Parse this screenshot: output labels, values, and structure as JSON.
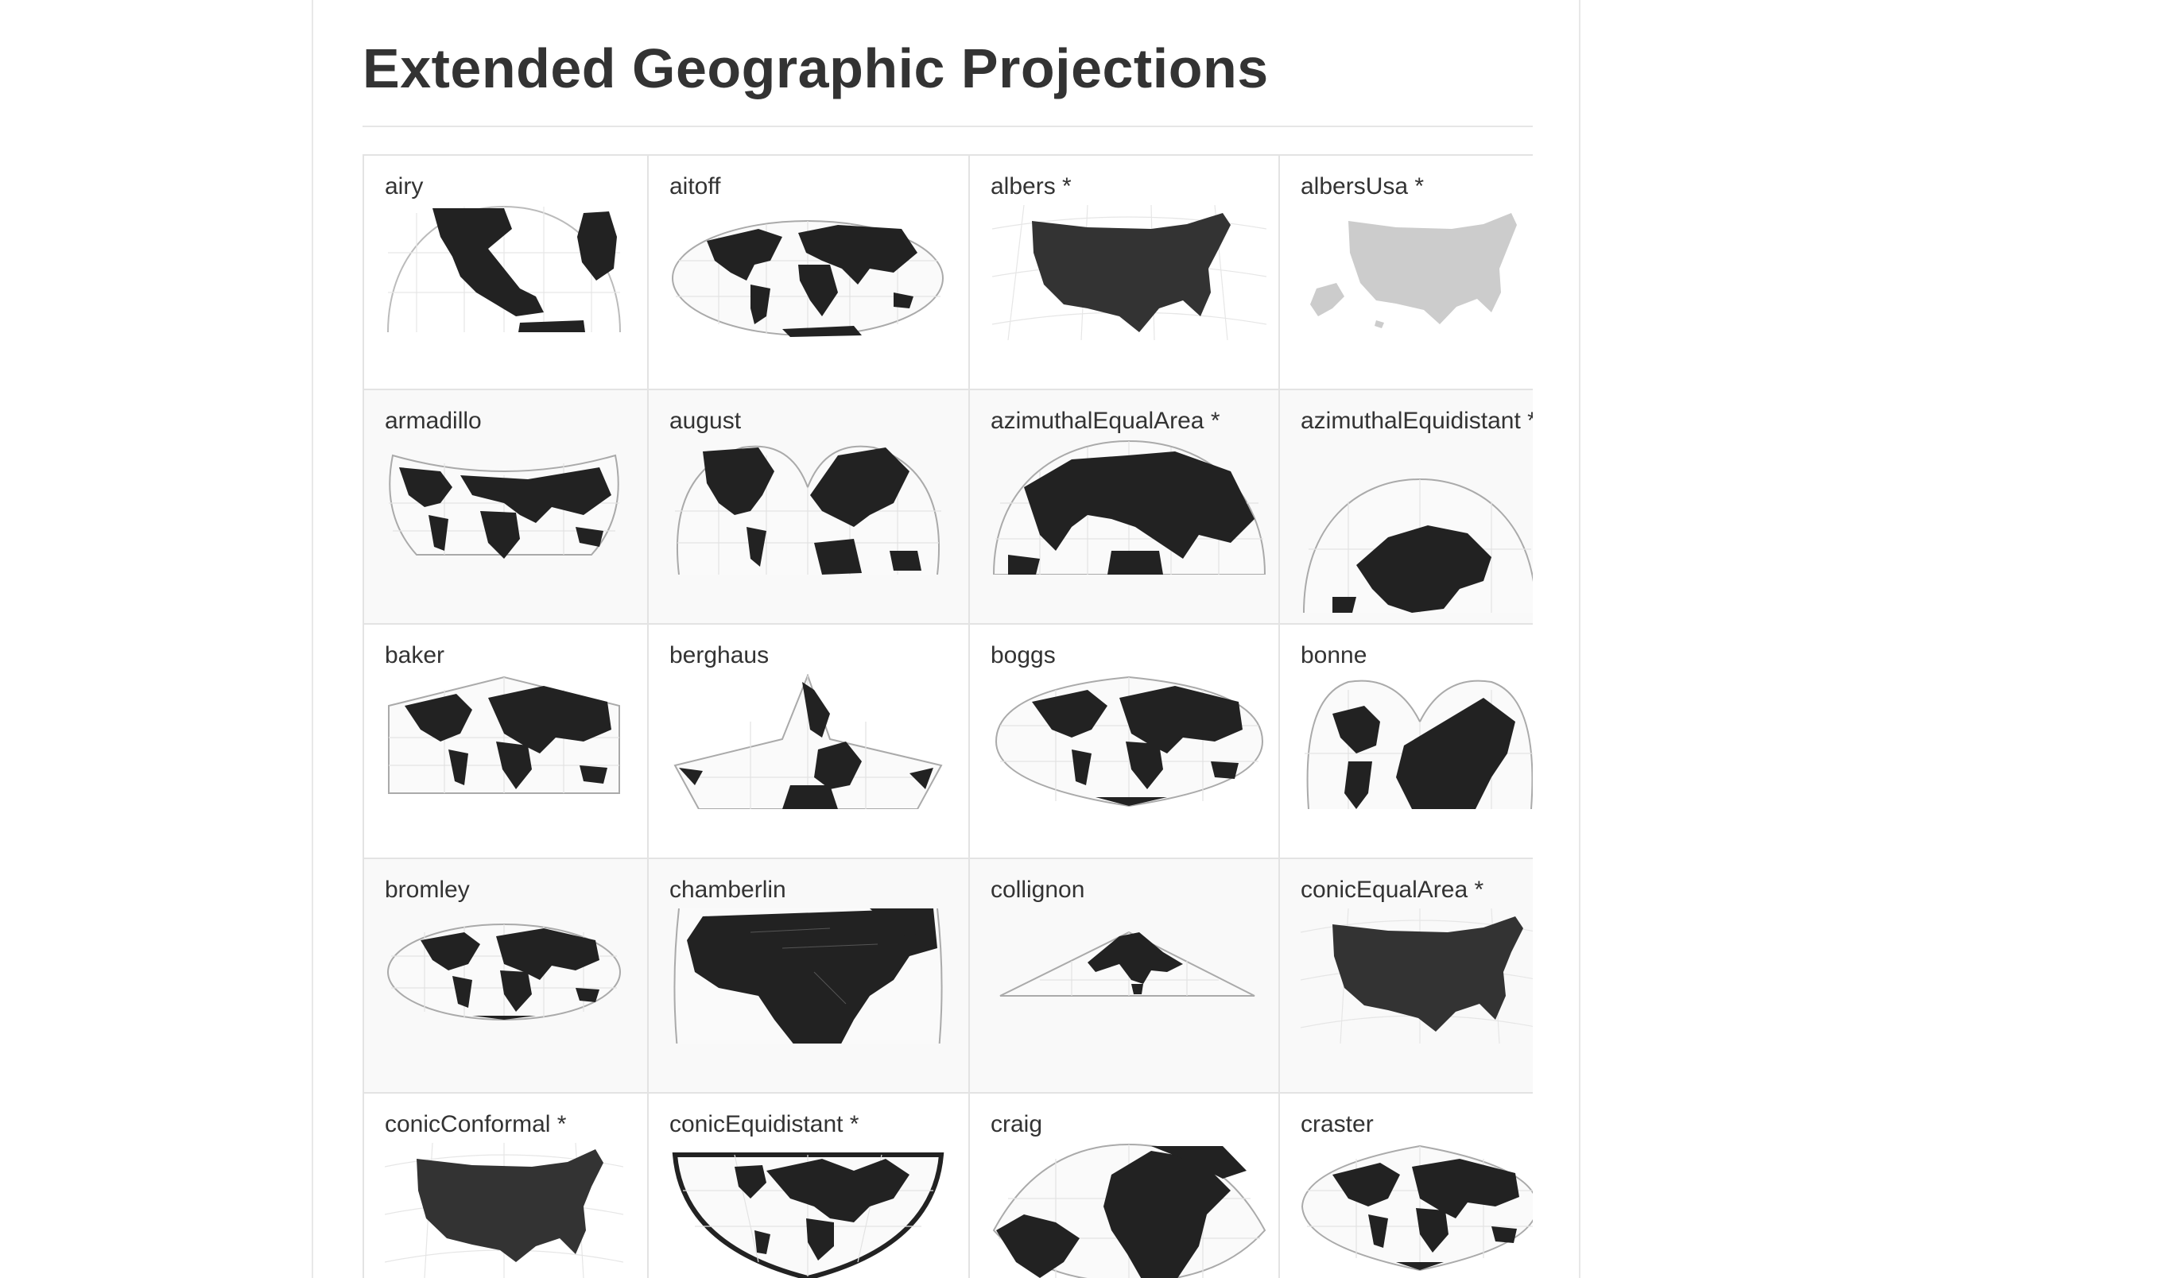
{
  "page": {
    "title": "Extended Geographic Projections"
  },
  "projections": [
    {
      "label": "airy"
    },
    {
      "label": "aitoff"
    },
    {
      "label": "albers *"
    },
    {
      "label": "albersUsa *"
    },
    {
      "label": "armadillo"
    },
    {
      "label": "august"
    },
    {
      "label": "azimuthalEqualArea *"
    },
    {
      "label": "azimuthalEquidistant *"
    },
    {
      "label": "baker"
    },
    {
      "label": "berghaus"
    },
    {
      "label": "boggs"
    },
    {
      "label": "bonne"
    },
    {
      "label": "bromley"
    },
    {
      "label": "chamberlin"
    },
    {
      "label": "collignon"
    },
    {
      "label": "conicEqualArea *"
    },
    {
      "label": "conicConformal *"
    },
    {
      "label": "conicEquidistant *"
    },
    {
      "label": "craig"
    },
    {
      "label": "craster"
    }
  ],
  "colors": {
    "land": "#222222",
    "usa_land": "#333333",
    "usa_light": "#cccccc",
    "graticule": "#dddddd",
    "outline": "#aaaaaa"
  }
}
